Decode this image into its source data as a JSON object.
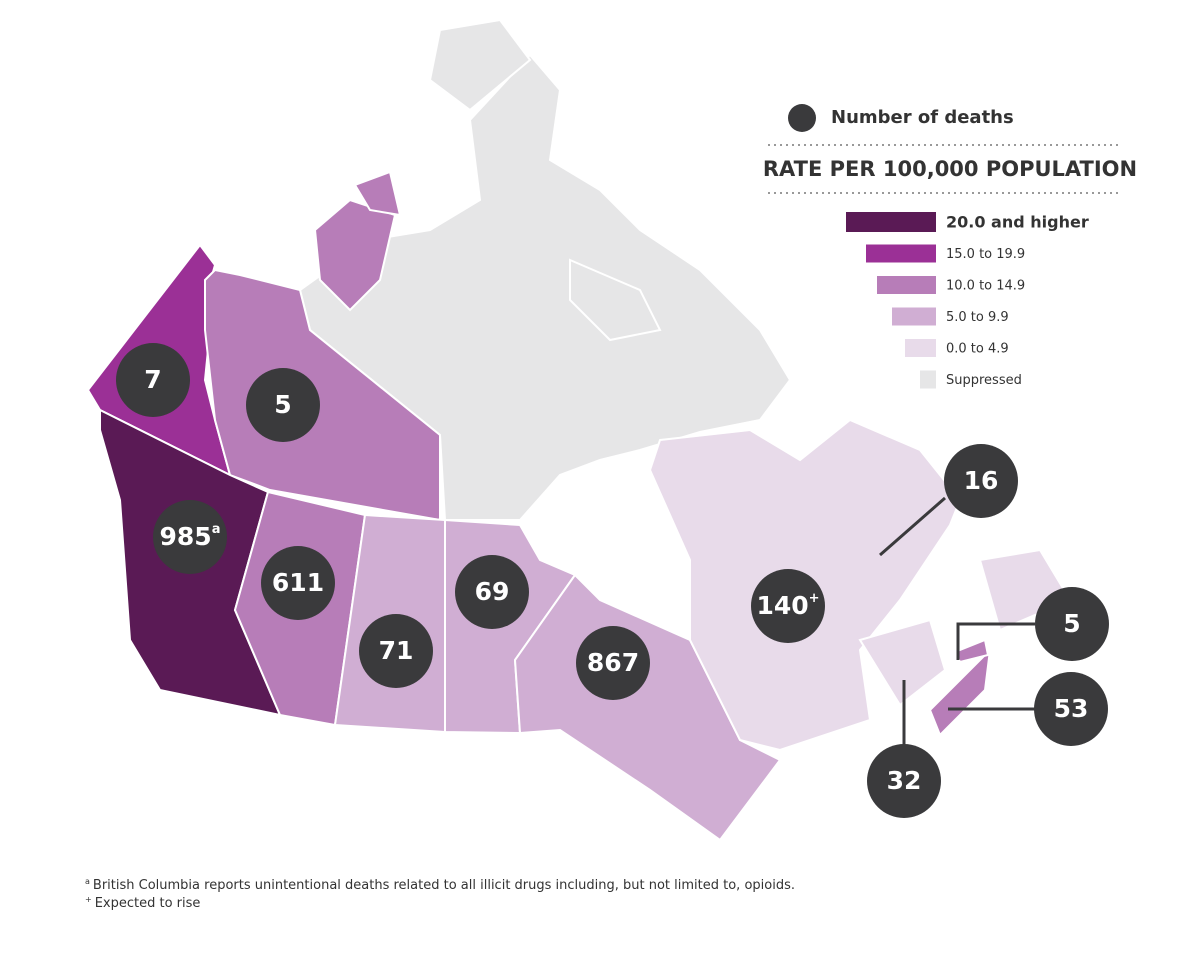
{
  "legend": {
    "marker_label": "Number of deaths",
    "title": "RATE PER 100,000 POPULATION",
    "items": [
      {
        "label": "20.0 and higher",
        "color": "#5a1a55"
      },
      {
        "label": "15.0 to 19.9",
        "color": "#9b3096"
      },
      {
        "label": "10.0 to 14.9",
        "color": "#b77db8"
      },
      {
        "label": "5.0 to 9.9",
        "color": "#d0aed3"
      },
      {
        "label": "0.0 to 4.9",
        "color": "#e8dbea"
      },
      {
        "label": "Suppressed",
        "color": "#e6e6e7"
      }
    ]
  },
  "markers": [
    {
      "deaths": 7
    },
    {
      "deaths": 5
    },
    {
      "deaths": 985,
      "note": "a"
    },
    {
      "deaths": 611
    },
    {
      "deaths": 71
    },
    {
      "deaths": 69
    },
    {
      "deaths": 867
    },
    {
      "deaths": 140,
      "note": "+"
    },
    {
      "deaths": 16
    },
    {
      "deaths": 5
    },
    {
      "deaths": 53
    },
    {
      "deaths": 32
    }
  ],
  "footnotes": [
    {
      "mark": "a",
      "text": "British Columbia reports unintentional deaths related to all illicit drugs including, but not limited to, opioids."
    },
    {
      "mark": "+",
      "text": "Expected to rise"
    }
  ]
}
